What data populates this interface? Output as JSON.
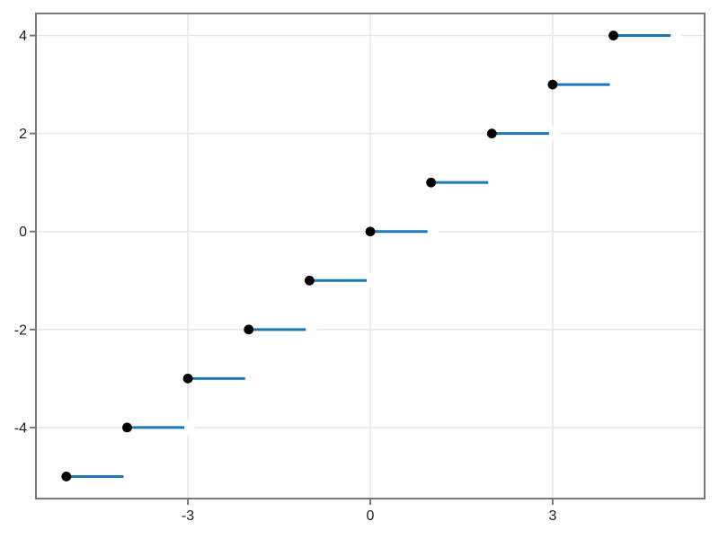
{
  "chart_data": {
    "type": "line",
    "style": "step-function-segments",
    "function": "y = floor(x) for x in [-5, 5]",
    "title": "",
    "xlabel": "",
    "ylabel": "",
    "xlim": [
      -5.5,
      5.5
    ],
    "ylim": [
      -5.45,
      4.45
    ],
    "x_ticks": [
      -3,
      0,
      3
    ],
    "y_ticks": [
      -4,
      -2,
      0,
      2,
      4
    ],
    "grid": true,
    "legend": false,
    "segments": [
      {
        "y": -5,
        "x_start": -5,
        "x_end": -4,
        "closed_at": "start",
        "open_at": "end"
      },
      {
        "y": -4,
        "x_start": -4,
        "x_end": -3,
        "closed_at": "start",
        "open_at": "end"
      },
      {
        "y": -3,
        "x_start": -3,
        "x_end": -2,
        "closed_at": "start",
        "open_at": "end"
      },
      {
        "y": -2,
        "x_start": -2,
        "x_end": -1,
        "closed_at": "start",
        "open_at": "end"
      },
      {
        "y": -1,
        "x_start": -1,
        "x_end": 0,
        "closed_at": "start",
        "open_at": "end"
      },
      {
        "y": 0,
        "x_start": 0,
        "x_end": 1,
        "closed_at": "start",
        "open_at": "end"
      },
      {
        "y": 1,
        "x_start": 1,
        "x_end": 2,
        "closed_at": "start",
        "open_at": "end"
      },
      {
        "y": 2,
        "x_start": 2,
        "x_end": 3,
        "closed_at": "start",
        "open_at": "end"
      },
      {
        "y": 3,
        "x_start": 3,
        "x_end": 4,
        "closed_at": "start",
        "open_at": "end"
      },
      {
        "y": 4,
        "x_start": 4,
        "x_end": 5,
        "closed_at": "start",
        "open_at": "end"
      }
    ],
    "colors": {
      "line": "#1f77b4",
      "marker": "#000000",
      "open_marker": "#ffffff",
      "frame": "#787878",
      "grid": "#e7e7e7",
      "tick": "#787878",
      "tick_label": "#1c1c1c",
      "background": "#ffffff"
    }
  }
}
